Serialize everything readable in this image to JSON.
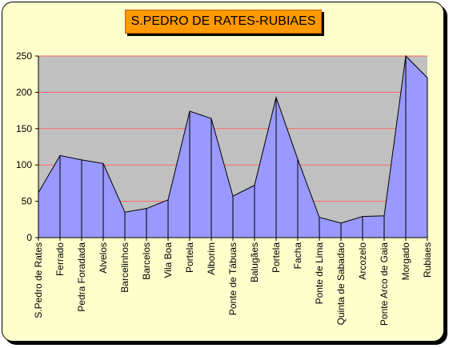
{
  "chart_data": {
    "type": "area",
    "title": "S.PEDRO DE RATES-RUBIAES",
    "xlabel": "",
    "ylabel": "",
    "ylim": [
      0,
      250
    ],
    "yticks": [
      0,
      50,
      100,
      150,
      200,
      250
    ],
    "grid": true,
    "legend": "none",
    "categories": [
      "S.Pedro de Rates",
      "Ferrado",
      "Pedra Foradada",
      "Alvelos",
      "Barcelinhos",
      "Barcelos",
      "Vila Boa",
      "Portela",
      "Alborim",
      "Ponte de Tábuas",
      "Balugães",
      "Portela",
      "Facha",
      "Ponte de Lima",
      "Quinta de Sabadao",
      "Arcozelo",
      "Ponte Arco de Gaia",
      "Morgado",
      "Rubiaes"
    ],
    "values": [
      62,
      113,
      107,
      102,
      35,
      40,
      52,
      174,
      164,
      57,
      72,
      193,
      108,
      28,
      20,
      29,
      30,
      253,
      220
    ],
    "colors": {
      "plot_background": "#c0c0c0",
      "area_fill": "#9999ff",
      "gridline": "#ff6666",
      "frame_background": "#ffffcc",
      "title_background": "#ff9900"
    }
  }
}
